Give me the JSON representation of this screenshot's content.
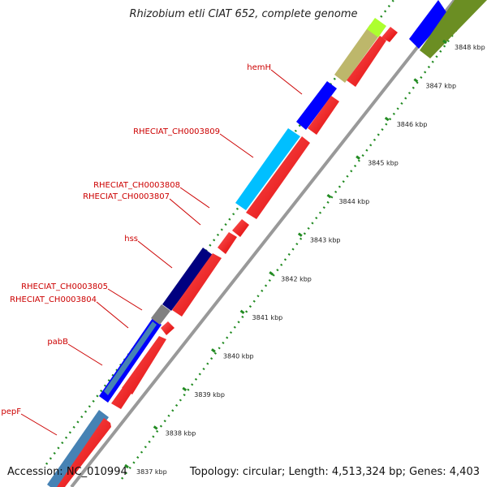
{
  "title": "Rhizobium etli CIAT 652, complete genome",
  "footer": {
    "accession": "Accession: NC_010994",
    "topology": "Topology: circular; Length: 4,513,324 bp; Genes: 4,403"
  },
  "ticks": [
    "3837 kbp",
    "3838 kbp",
    "3839 kbp",
    "3840 kbp",
    "3841 kbp",
    "3842 kbp",
    "3843 kbp",
    "3844 kbp",
    "3845 kbp",
    "3846 kbp",
    "3847 kbp",
    "3848 kbp"
  ],
  "gene_labels": [
    "hemH",
    "RHECIAT_CH0003809",
    "RHECIAT_CH0003808",
    "RHECIAT_CH0003807",
    "hss",
    "RHECIAT_CH0003805",
    "RHECIAT_CH0003804",
    "pabB",
    "pepF"
  ],
  "colors": {
    "cds_forward": "#ff0000",
    "label": "#cc0000",
    "tick": "#228b22",
    "backbone": "#999999",
    "genes": [
      "#0000ff",
      "#00bfff",
      "#000080",
      "#4682b4",
      "#6b8e23",
      "#bdb76b",
      "#808080",
      "#adff2f"
    ]
  }
}
